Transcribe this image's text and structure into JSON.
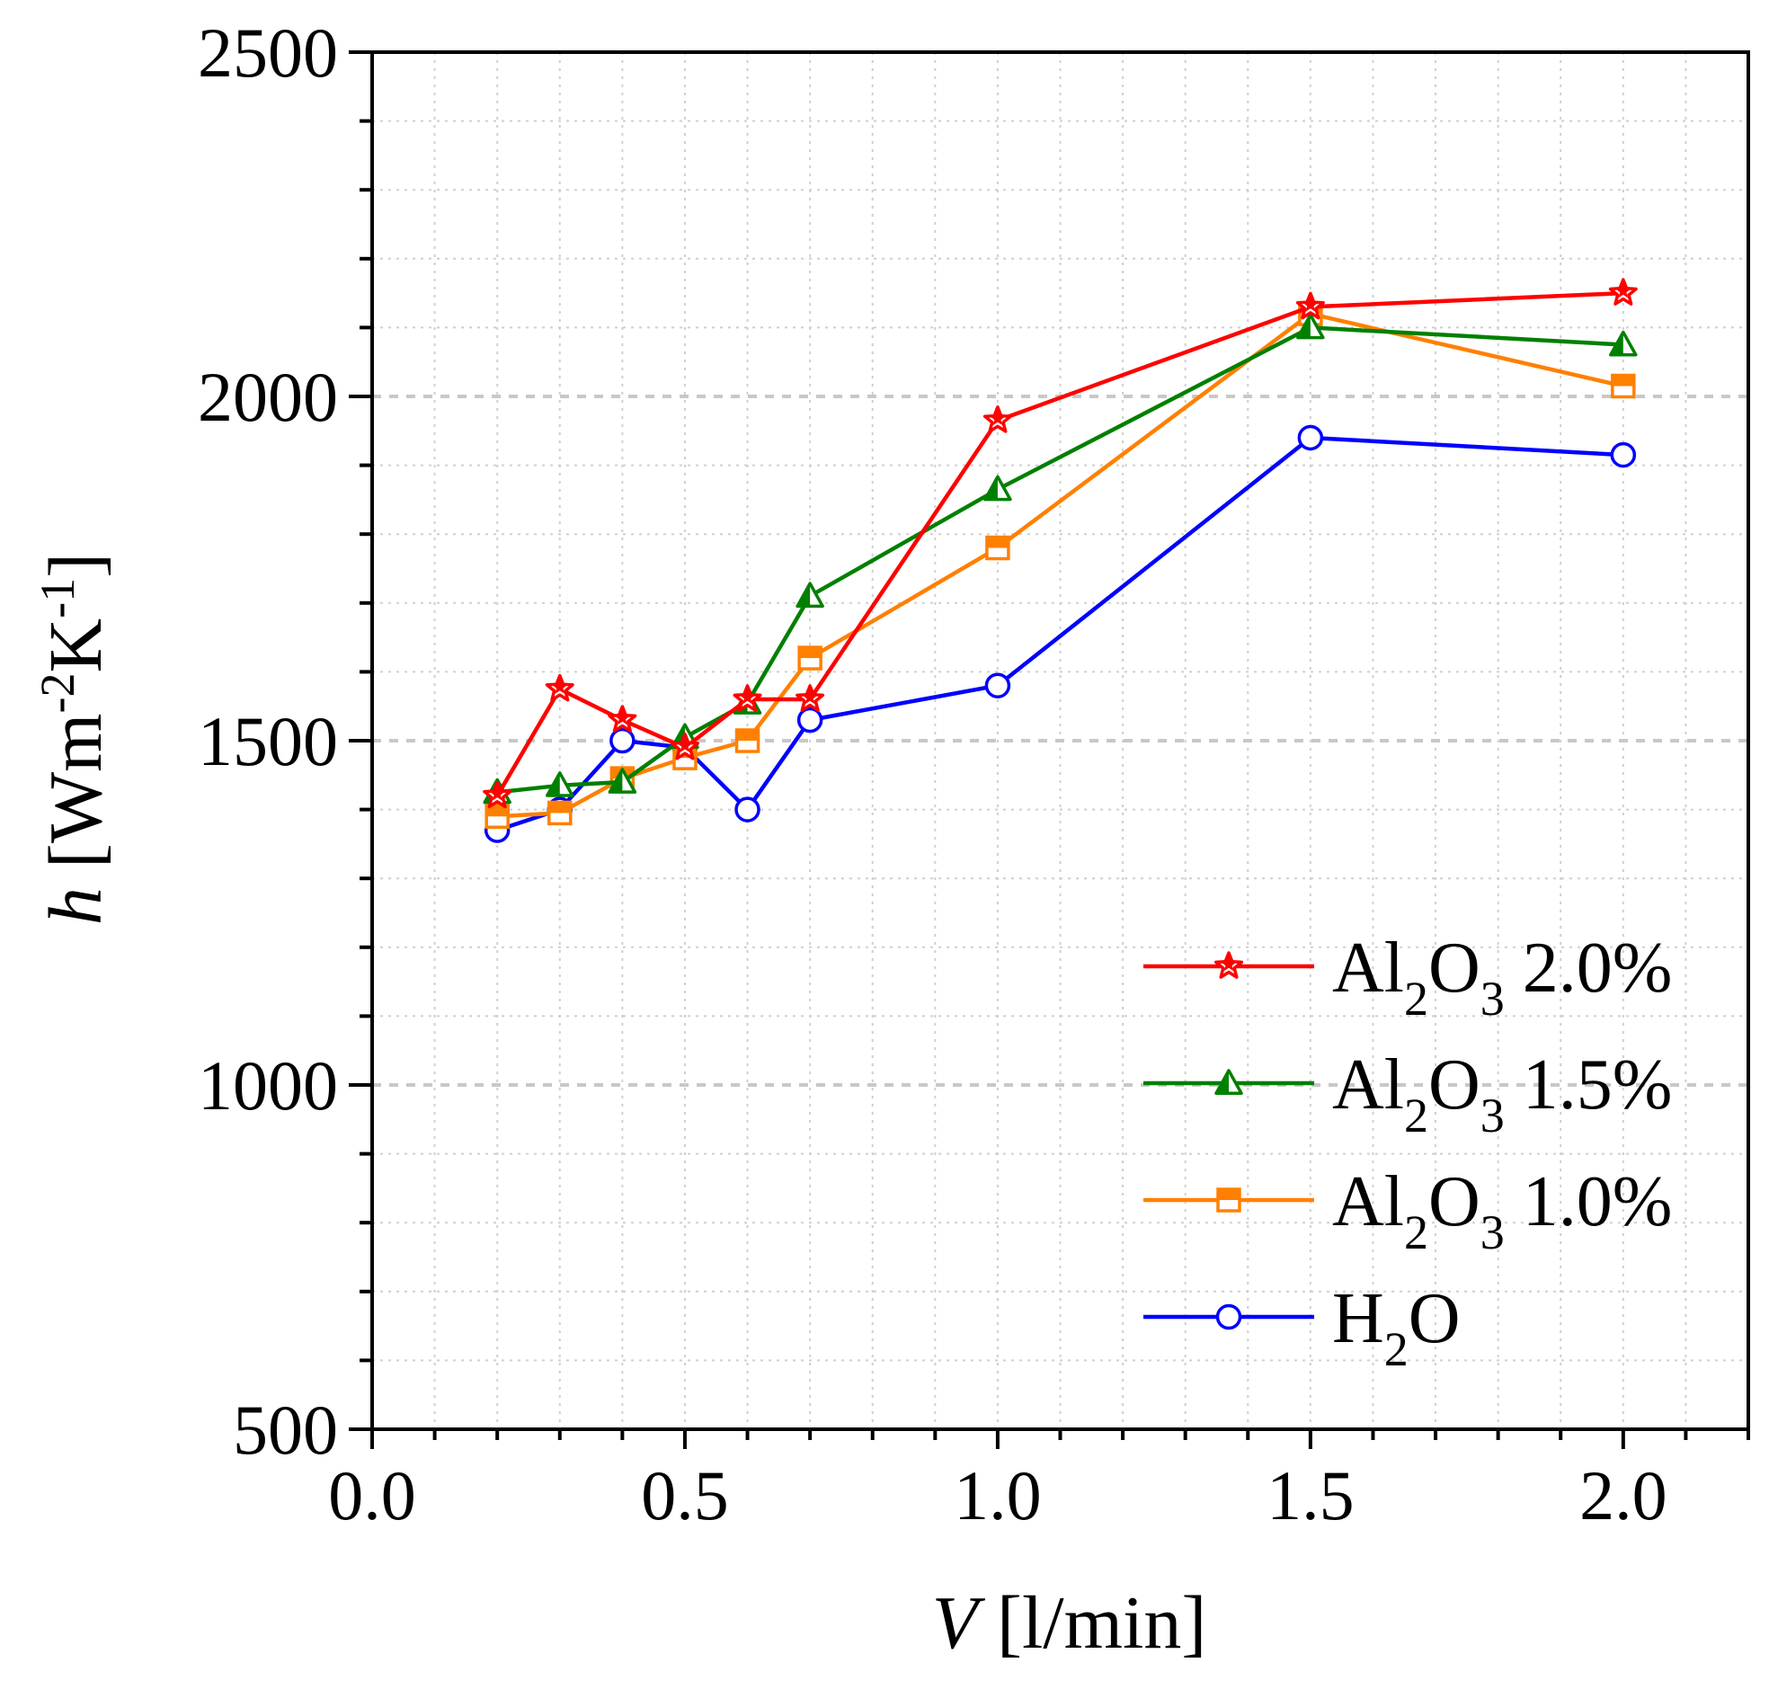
{
  "chart_data": {
    "type": "line",
    "title": "",
    "xlabel": {
      "italic": "V",
      "text": " [l/min]"
    },
    "ylabel": {
      "italic": "h",
      "text": " [Wm",
      "sup1": "-2",
      "mid": "K",
      "sup2": "-1",
      "close": "]"
    },
    "xlim": [
      0,
      2.2
    ],
    "ylim": [
      500,
      2500
    ],
    "xticks": [
      0.0,
      0.5,
      1.0,
      1.5,
      2.0
    ],
    "xtick_labels": [
      "0.0",
      "0.5",
      "1.0",
      "1.5",
      "2.0"
    ],
    "xminor_step": 0.1,
    "yticks": [
      500,
      1000,
      1500,
      2000,
      2500
    ],
    "ytick_labels": [
      "500",
      "1000",
      "1500",
      "2000",
      "2500"
    ],
    "yminor_step": 100,
    "grid": true,
    "legend_position": "lower-right",
    "series": [
      {
        "name": "Al2O3 2.0%",
        "label": {
          "a": "Al",
          "s1": "2",
          "b": "O",
          "s2": "3",
          "c": " 2.0%"
        },
        "color": "#ff0000",
        "marker": "star",
        "x": [
          0.2,
          0.3,
          0.4,
          0.5,
          0.6,
          0.7,
          1.0,
          1.5,
          2.0
        ],
        "y": [
          1420,
          1575,
          1530,
          1490,
          1560,
          1560,
          1965,
          2130,
          2150
        ]
      },
      {
        "name": "Al2O3 1.5%",
        "label": {
          "a": "Al",
          "s1": "2",
          "b": "O",
          "s2": "3",
          "c": " 1.5%"
        },
        "color": "#008000",
        "marker": "triangle",
        "x": [
          0.2,
          0.3,
          0.4,
          0.5,
          0.6,
          0.7,
          1.0,
          1.5,
          2.0
        ],
        "y": [
          1425,
          1435,
          1440,
          1505,
          1555,
          1710,
          1865,
          2100,
          2075
        ]
      },
      {
        "name": "Al2O3 1.0%",
        "label": {
          "a": "Al",
          "s1": "2",
          "b": "O",
          "s2": "3",
          "c": " 1.0%"
        },
        "color": "#ff8000",
        "marker": "square",
        "x": [
          0.2,
          0.3,
          0.4,
          0.5,
          0.6,
          0.7,
          1.0,
          1.5,
          2.0
        ],
        "y": [
          1390,
          1395,
          1445,
          1475,
          1500,
          1620,
          1780,
          2120,
          2015
        ]
      },
      {
        "name": "H2O",
        "label": {
          "a": "H",
          "s1": "2",
          "b": "O",
          "s2": "",
          "c": ""
        },
        "color": "#0000ff",
        "marker": "circle",
        "x": [
          0.2,
          0.3,
          0.4,
          0.5,
          0.6,
          0.7,
          1.0,
          1.5,
          2.0
        ],
        "y": [
          1370,
          1400,
          1500,
          1490,
          1400,
          1530,
          1580,
          1940,
          1915
        ]
      }
    ]
  }
}
